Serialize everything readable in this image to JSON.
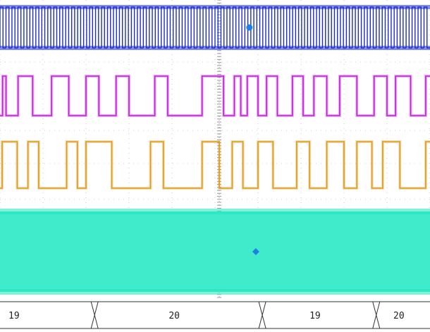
{
  "chart_data": {
    "type": "line",
    "title": "",
    "xlabel": "",
    "ylabel": "",
    "grid": true,
    "x": {
      "start": 0,
      "end": 10,
      "divisions": 10
    },
    "series": [
      {
        "color": "#1a2bd6",
        "kind": "clock",
        "cycles": 72,
        "levels": [
          0,
          1
        ],
        "marker": {
          "shape": "circle",
          "at": 5.8
        }
      },
      {
        "color": "#c01fd8",
        "kind": "digital",
        "transitions": [
          0.06,
          0.14,
          0.42,
          0.76,
          1.2,
          1.6,
          2.0,
          2.3,
          2.7,
          3.0,
          3.6,
          3.9,
          4.7,
          5.2,
          5.45,
          5.6,
          5.75,
          6.0,
          6.2,
          6.45,
          6.8,
          7.05,
          7.3,
          7.6,
          7.9,
          8.3,
          8.7,
          9.0,
          9.2,
          9.55,
          9.9
        ],
        "start_level": 0,
        "levels": [
          0,
          1
        ]
      },
      {
        "color": "#dc9b1c",
        "kind": "digital",
        "transitions": [
          0.05,
          0.4,
          0.65,
          0.9,
          1.55,
          1.8,
          2.0,
          2.6,
          3.5,
          3.8,
          4.7,
          5.1,
          5.4,
          5.65,
          6.0,
          6.35,
          6.9,
          7.2,
          7.6,
          8.0,
          8.3,
          8.65,
          8.9,
          9.3,
          9.9
        ],
        "start_level": 0,
        "levels": [
          0,
          1
        ]
      },
      {
        "color": "#2ee8c4",
        "kind": "dense",
        "levels": [
          0,
          1
        ],
        "marker": {
          "shape": "diamond",
          "at": 5.95
        }
      }
    ],
    "bus": {
      "color": "#333333",
      "segments": [
        {
          "start": 0,
          "end": 2.2,
          "label": "19"
        },
        {
          "start": 2.2,
          "end": 6.1,
          "label": "20"
        },
        {
          "start": 6.1,
          "end": 8.75,
          "label": "19"
        },
        {
          "start": 8.75,
          "end": 10,
          "label": "20"
        }
      ]
    }
  }
}
